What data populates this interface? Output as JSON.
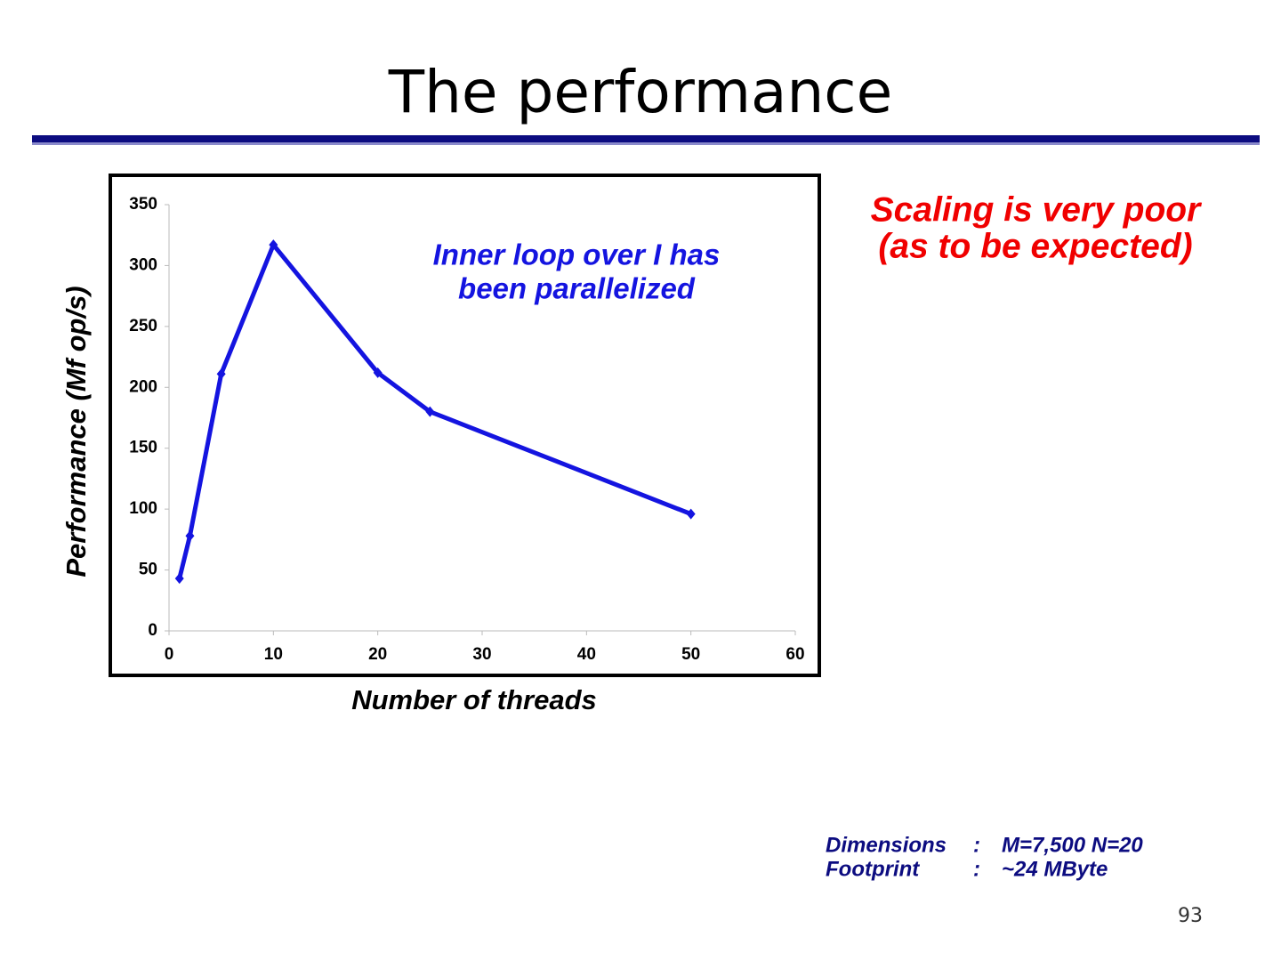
{
  "title": "The performance",
  "chart_data": {
    "type": "line",
    "x": [
      1,
      2,
      5,
      10,
      20,
      25,
      50
    ],
    "values": [
      43,
      78,
      211,
      317,
      212,
      180,
      96
    ],
    "color": "#1414e0",
    "xlim": [
      0,
      60
    ],
    "ylim": [
      0,
      350
    ],
    "xticks": [
      0,
      10,
      20,
      30,
      40,
      50,
      60
    ],
    "yticks": [
      0,
      50,
      100,
      150,
      200,
      250,
      300,
      350
    ],
    "grid": false,
    "xlabel": "Number of threads",
    "ylabel": "Performance (Mf op/s)",
    "annotation": [
      "Inner loop over I has",
      "been parallelized"
    ]
  },
  "note": [
    "Scaling is very poor",
    "(as to be expected)"
  ],
  "specs": [
    {
      "label": "Dimensions",
      "sep": ":",
      "value": "M=7,500 N=20"
    },
    {
      "label": "Footprint",
      "sep": ":",
      "value": "~24 MByte"
    }
  ],
  "page_number": 93
}
